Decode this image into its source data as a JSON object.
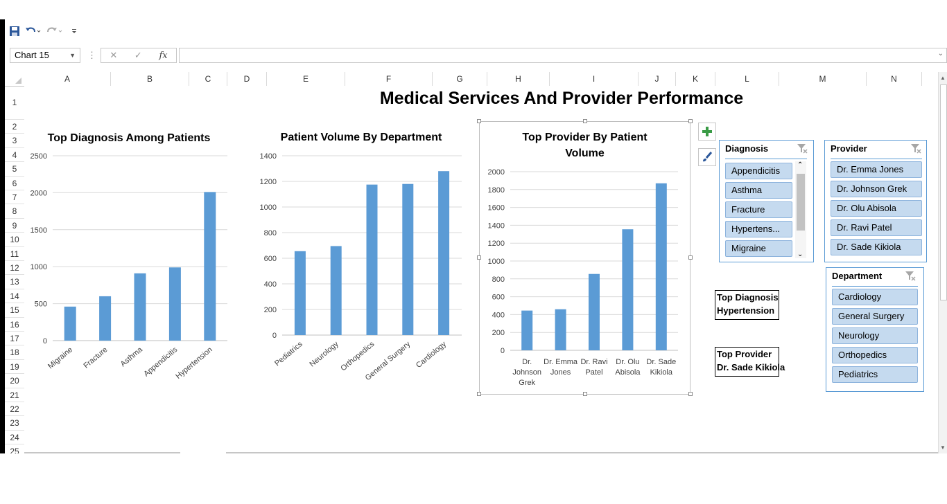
{
  "qat": {
    "save_icon": "save-icon",
    "undo_icon": "undo-icon",
    "redo_icon": "redo-icon",
    "customize_icon": "customize-icon"
  },
  "formula_bar": {
    "name_box": "Chart 15",
    "fx_label": "fx",
    "formula": ""
  },
  "columns": [
    "A",
    "B",
    "C",
    "D",
    "E",
    "F",
    "G",
    "H",
    "I",
    "J",
    "K",
    "L",
    "M",
    "N"
  ],
  "rows": [
    "1",
    "2",
    "3",
    "4",
    "5",
    "6",
    "7",
    "8",
    "9",
    "10",
    "11",
    "12",
    "13",
    "14",
    "15",
    "16",
    "17",
    "18",
    "19",
    "20",
    "21",
    "22",
    "23",
    "24",
    "25"
  ],
  "sheet_title": "Medical Services And Provider Performance",
  "chart_data": [
    {
      "type": "bar",
      "title": "Top Diagnosis Among Patients",
      "categories": [
        "Migraine",
        "Fracture",
        "Asthma",
        "Appendicitis",
        "Hypertension"
      ],
      "values": [
        460,
        600,
        910,
        990,
        2010
      ],
      "ylim": [
        0,
        2500
      ],
      "yticks": [
        "0",
        "500",
        "1000",
        "1500",
        "2000",
        "2500"
      ],
      "grid": true,
      "color": "#5b9bd5"
    },
    {
      "type": "bar",
      "title": "Patient Volume By Department",
      "categories": [
        "Pediatrics",
        "Neurology",
        "Orthopedics",
        "General Surgery",
        "Cardiology"
      ],
      "values": [
        655,
        695,
        1175,
        1180,
        1280
      ],
      "ylim": [
        0,
        1400
      ],
      "yticks": [
        "0",
        "200",
        "400",
        "600",
        "800",
        "1000",
        "1200",
        "1400"
      ],
      "grid": true,
      "color": "#5b9bd5"
    },
    {
      "type": "bar",
      "title_lines": [
        "Top Provider By Patient",
        "Volume"
      ],
      "categories": [
        [
          "Dr.",
          "Johnson",
          "Grek"
        ],
        [
          "Dr. Emma",
          "Jones"
        ],
        [
          "Dr. Ravi",
          "Patel"
        ],
        [
          "Dr. Olu",
          "Abisola"
        ],
        [
          "Dr. Sade",
          "Kikiola"
        ]
      ],
      "values": [
        445,
        460,
        855,
        1355,
        1870
      ],
      "ylim": [
        0,
        2000
      ],
      "yticks": [
        "0",
        "200",
        "400",
        "600",
        "800",
        "1000",
        "1200",
        "1400",
        "1600",
        "1800",
        "2000"
      ],
      "grid": true,
      "color": "#5b9bd5"
    }
  ],
  "chart_tools": {
    "add_icon": "plus-icon",
    "style_icon": "brush-icon"
  },
  "slicers": {
    "diagnosis": {
      "title": "Diagnosis",
      "items": [
        "Appendicitis",
        "Asthma",
        "Fracture",
        "Hypertens...",
        "Migraine"
      ]
    },
    "provider": {
      "title": "Provider",
      "items": [
        "Dr. Emma Jones",
        "Dr. Johnson Grek",
        "Dr. Olu Abisola",
        "Dr. Ravi Patel",
        "Dr. Sade Kikiola"
      ]
    },
    "department": {
      "title": "Department",
      "items": [
        "Cardiology",
        "General Surgery",
        "Neurology",
        "Orthopedics",
        "Pediatrics"
      ]
    }
  },
  "kpis": {
    "top_diagnosis": {
      "label": "Top Diagnosis",
      "value": "Hypertension"
    },
    "top_provider": {
      "label": "Top Provider",
      "value": "Dr. Sade Kikiola"
    }
  },
  "colors": {
    "bar": "#5b9bd5",
    "slicer_item": "#c5daef",
    "slicer_border": "#5b9bd5",
    "grid": "#d9d9d9"
  }
}
